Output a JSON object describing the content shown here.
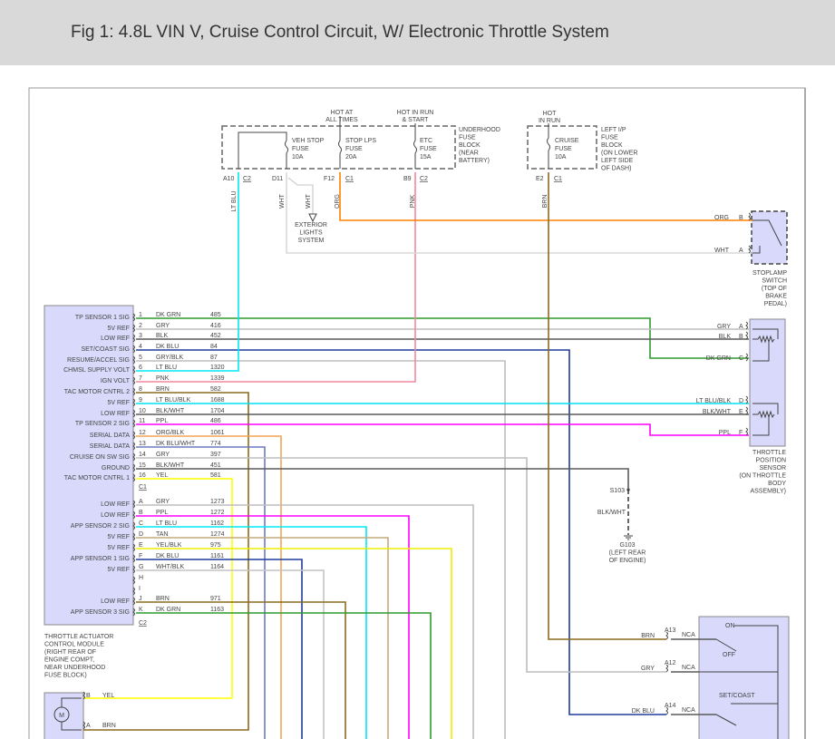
{
  "title": "Fig 1: 4.8L VIN V, Cruise Control Circuit, W/ Electronic Throttle System",
  "wire_colors": {
    "DK GRN": "#2e9a2e",
    "GRY": "#bdbdbd",
    "BLK": "#5a5a5a",
    "DK BLU": "#1e3c9c",
    "GRY/BLK": "#bdbdbd",
    "LT BLU": "#00e8f8",
    "PNK": "#f2899e",
    "BRN": "#8b6a1f",
    "LT BLU/BLK": "#00e0f0",
    "BLK/WHT": "#5a5a5a",
    "PPL": "#ff00ff",
    "ORG/BLK": "#f4a455",
    "DK BLU/WHT": "#6a7cc4",
    "YEL": "#ffff00",
    "TAN": "#c4aa7a",
    "YEL/BLK": "#eeee00",
    "WHT/BLK": "#c4c4c4",
    "ORG": "#ff8000",
    "WHT": "#d8d8d8"
  },
  "module": {
    "c1_label": "C1",
    "c2_label": "C2",
    "name_lines": [
      "THROTTLE ACTUATOR",
      "CONTROL MODULE",
      "(RIGHT REAR OF",
      "ENGINE COMPT,",
      "NEAR UNDERHOOD",
      "FUSE BLOCK)"
    ],
    "c1_pins": [
      {
        "pin": "1",
        "function": "TP SENSOR 1 SIG",
        "color": "DK GRN",
        "circuit": "485"
      },
      {
        "pin": "2",
        "function": "5V REF",
        "color": "GRY",
        "circuit": "416"
      },
      {
        "pin": "3",
        "function": "LOW REF",
        "color": "BLK",
        "circuit": "452"
      },
      {
        "pin": "4",
        "function": "SET/COAST SIG",
        "color": "DK BLU",
        "circuit": "84"
      },
      {
        "pin": "5",
        "function": "RESUME/ACCEL SIG",
        "color": "GRY/BLK",
        "circuit": "87"
      },
      {
        "pin": "6",
        "function": "CHMSL SUPPLY VOLT",
        "color": "LT BLU",
        "circuit": "1320"
      },
      {
        "pin": "7",
        "function": "IGN VOLT",
        "color": "PNK",
        "circuit": "1339"
      },
      {
        "pin": "8",
        "function": "TAC MOTOR CNTRL 2",
        "color": "BRN",
        "circuit": "582"
      },
      {
        "pin": "9",
        "function": "5V REF",
        "color": "LT BLU/BLK",
        "circuit": "1688"
      },
      {
        "pin": "10",
        "function": "LOW REF",
        "color": "BLK/WHT",
        "circuit": "1704"
      },
      {
        "pin": "11",
        "function": "TP SENSOR 2 SIG",
        "color": "PPL",
        "circuit": "486"
      },
      {
        "pin": "12",
        "function": "SERIAL DATA",
        "color": "ORG/BLK",
        "circuit": "1061"
      },
      {
        "pin": "13",
        "function": "SERIAL DATA",
        "color": "DK BLU/WHT",
        "circuit": "774"
      },
      {
        "pin": "14",
        "function": "CRUISE ON SW SIG",
        "color": "GRY",
        "circuit": "397"
      },
      {
        "pin": "15",
        "function": "GROUND",
        "color": "BLK/WHT",
        "circuit": "451"
      },
      {
        "pin": "16",
        "function": "TAC MOTOR CNTRL 1",
        "color": "YEL",
        "circuit": "581"
      }
    ],
    "c2_pins": [
      {
        "pin": "A",
        "function": "LOW REF",
        "color": "GRY",
        "circuit": "1273"
      },
      {
        "pin": "B",
        "function": "LOW REF",
        "color": "PPL",
        "circuit": "1272"
      },
      {
        "pin": "C",
        "function": "APP SENSOR 2 SIG",
        "color": "LT BLU",
        "circuit": "1162"
      },
      {
        "pin": "D",
        "function": "5V REF",
        "color": "TAN",
        "circuit": "1274"
      },
      {
        "pin": "E",
        "function": "5V REF",
        "color": "YEL/BLK",
        "circuit": "975"
      },
      {
        "pin": "F",
        "function": "APP SENSOR 1 SIG",
        "color": "DK BLU",
        "circuit": "1161"
      },
      {
        "pin": "G",
        "function": "5V REF",
        "color": "WHT/BLK",
        "circuit": "1164"
      },
      {
        "pin": "H",
        "function": "",
        "color": "",
        "circuit": ""
      },
      {
        "pin": "I",
        "function": "",
        "color": "",
        "circuit": ""
      },
      {
        "pin": "J",
        "function": "LOW REF",
        "color": "BRN",
        "circuit": "971"
      },
      {
        "pin": "K",
        "function": "APP SENSOR 3 SIG",
        "color": "DK GRN",
        "circuit": "1163"
      }
    ]
  },
  "underhood": {
    "hot1": [
      "HOT AT",
      "ALL TIMES"
    ],
    "hot2": [
      "HOT IN RUN",
      "& START"
    ],
    "label": [
      "UNDERHOOD",
      "FUSE",
      "BLOCK",
      "(NEAR",
      "BATTERY)"
    ],
    "fuse1": [
      "VEH STOP",
      "FUSE",
      "10A"
    ],
    "fuse2": [
      "STOP LPS",
      "FUSE",
      "20A"
    ],
    "fuse3": [
      "ETC",
      "FUSE",
      "15A"
    ],
    "pins": [
      {
        "pin": "A10",
        "conn": "C2"
      },
      {
        "pin": "D11",
        "conn": ""
      },
      {
        "pin": "F12",
        "conn": "C1"
      },
      {
        "pin": "B9",
        "conn": "C2"
      }
    ],
    "wires": [
      "LT BLU",
      "WHT",
      "WHT",
      "ORG",
      "PNK"
    ],
    "exterior": [
      "EXTERIOR",
      "LIGHTS",
      "SYSTEM"
    ]
  },
  "ip_fuse": {
    "hot": [
      "HOT",
      "IN RUN"
    ],
    "fuse": [
      "CRUISE",
      "FUSE",
      "10A"
    ],
    "label": [
      "LEFT I/P",
      "FUSE",
      "BLOCK",
      "(ON LOWER",
      "LEFT SIDE",
      "OF DASH)"
    ],
    "pin": "E2",
    "conn": "C1",
    "wire": "BRN"
  },
  "stoplamp": {
    "pins": [
      {
        "pin": "B",
        "wire": "ORG"
      },
      {
        "pin": "A",
        "wire": "WHT"
      }
    ],
    "label": [
      "STOPLAMP",
      "SWITCH",
      "(TOP OF",
      "BRAKE",
      "PEDAL)"
    ]
  },
  "tps": {
    "pins": [
      {
        "pin": "A",
        "wire": "GRY"
      },
      {
        "pin": "B",
        "wire": "BLK"
      },
      {
        "pin": "C",
        "wire": "DK GRN"
      },
      {
        "pin": "D",
        "wire": "LT BLU/BLK"
      },
      {
        "pin": "E",
        "wire": "BLK/WHT"
      },
      {
        "pin": "F",
        "wire": "PPL"
      }
    ],
    "label": [
      "THROTTLE",
      "POSITION",
      "SENSOR",
      "(ON THROTTLE",
      "BODY",
      "ASSEMBLY)"
    ]
  },
  "ground": {
    "splice": "S103",
    "wire": "BLK/WHT",
    "label": [
      "G103",
      "(LEFT REAR",
      "OF ENGINE)"
    ]
  },
  "cruise_switch": {
    "pins": [
      {
        "pin": "A13",
        "wire": "BRN",
        "nca": "NCA"
      },
      {
        "pin": "A12",
        "wire": "GRY",
        "nca": "NCA"
      },
      {
        "pin": "A14",
        "wire": "DK BLU",
        "nca": "NCA"
      }
    ],
    "on": "ON",
    "off": "OFF",
    "set": "SET/COAST"
  },
  "motor": {
    "symbol": "M",
    "pins": [
      {
        "pin": "B",
        "wire": "YEL"
      },
      {
        "pin": "A",
        "wire": "BRN"
      }
    ]
  }
}
